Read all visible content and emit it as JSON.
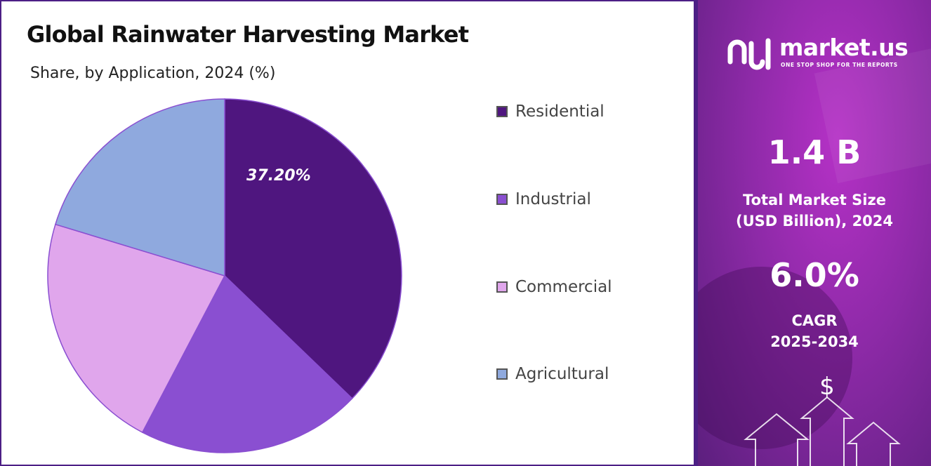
{
  "header": {
    "title": "Global Rainwater Harvesting Market",
    "subtitle": "Share, by Application, 2024 (%)"
  },
  "chart_data": {
    "type": "pie",
    "title": "Global Rainwater Harvesting Market",
    "subtitle": "Share, by Application, 2024 (%)",
    "start_angle_deg": 0,
    "direction": "clockwise",
    "slices": [
      {
        "label": "Residential",
        "value": 37.2,
        "color": "#4f167f",
        "data_label": "37.20%"
      },
      {
        "label": "Industrial",
        "value": 20.5,
        "color": "#8a4fd1",
        "data_label": ""
      },
      {
        "label": "Commercial",
        "value": 22.0,
        "color": "#e0a6ec",
        "data_label": ""
      },
      {
        "label": "Agricultural",
        "value": 20.3,
        "color": "#8fa9de",
        "data_label": ""
      }
    ],
    "legend_position": "right"
  },
  "legend": {
    "items": [
      {
        "label": "Residential",
        "color": "#4f167f"
      },
      {
        "label": "Industrial",
        "color": "#8a4fd1"
      },
      {
        "label": "Commercial",
        "color": "#e0a6ec"
      },
      {
        "label": "Agricultural",
        "color": "#8fa9de"
      }
    ]
  },
  "sidebar": {
    "logo_name": "market.us",
    "logo_tagline": "ONE STOP SHOP FOR THE REPORTS",
    "logo_icon": "market-us-logo-icon",
    "market_size_value": "1.4 B",
    "market_size_label_line1": "Total Market Size",
    "market_size_label_line2": "(USD Billion), 2024",
    "cagr_value": "6.0%",
    "cagr_label_line1": "CAGR",
    "cagr_label_line2": "2025-2034",
    "dollar_symbol": "$",
    "decor_icon": "growth-arrows-icon"
  }
}
